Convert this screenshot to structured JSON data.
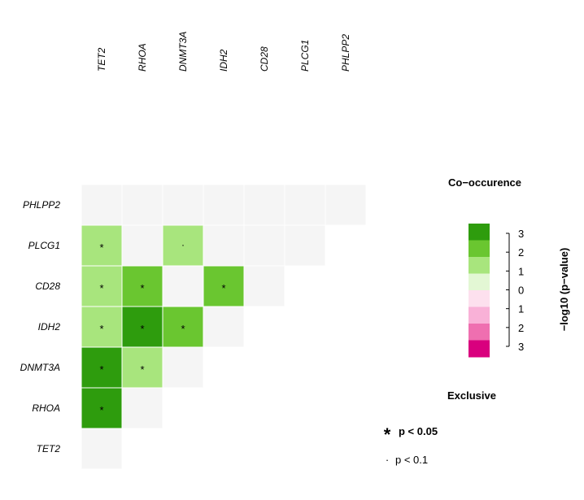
{
  "chart_data": {
    "type": "heatmap",
    "genes": [
      "TET2",
      "RHOA",
      "DNMT3A",
      "IDH2",
      "CD28",
      "PLCG1",
      "PHLPP2"
    ],
    "cells": [
      {
        "row": "RHOA",
        "col": "TET2",
        "value": 3,
        "sig": "*"
      },
      {
        "row": "DNMT3A",
        "col": "TET2",
        "value": 3,
        "sig": "*"
      },
      {
        "row": "DNMT3A",
        "col": "RHOA",
        "value": 1,
        "sig": "*"
      },
      {
        "row": "IDH2",
        "col": "TET2",
        "value": 1,
        "sig": "*"
      },
      {
        "row": "IDH2",
        "col": "RHOA",
        "value": 3,
        "sig": "*"
      },
      {
        "row": "IDH2",
        "col": "DNMT3A",
        "value": 2,
        "sig": "*"
      },
      {
        "row": "CD28",
        "col": "TET2",
        "value": 1,
        "sig": "*"
      },
      {
        "row": "CD28",
        "col": "RHOA",
        "value": 2,
        "sig": "*"
      },
      {
        "row": "CD28",
        "col": "DNMT3A",
        "value": 0,
        "sig": ""
      },
      {
        "row": "CD28",
        "col": "IDH2",
        "value": 2,
        "sig": "*"
      },
      {
        "row": "PLCG1",
        "col": "TET2",
        "value": 1,
        "sig": "*"
      },
      {
        "row": "PLCG1",
        "col": "RHOA",
        "value": 0,
        "sig": ""
      },
      {
        "row": "PLCG1",
        "col": "DNMT3A",
        "value": 1,
        "sig": "·"
      },
      {
        "row": "PLCG1",
        "col": "IDH2",
        "value": 0,
        "sig": ""
      },
      {
        "row": "PLCG1",
        "col": "CD28",
        "value": 0,
        "sig": ""
      },
      {
        "row": "PHLPP2",
        "col": "TET2",
        "value": 0,
        "sig": ""
      },
      {
        "row": "PHLPP2",
        "col": "RHOA",
        "value": 0,
        "sig": ""
      },
      {
        "row": "PHLPP2",
        "col": "DNMT3A",
        "value": 0,
        "sig": ""
      },
      {
        "row": "PHLPP2",
        "col": "IDH2",
        "value": 0,
        "sig": ""
      },
      {
        "row": "PHLPP2",
        "col": "CD28",
        "value": 0,
        "sig": ""
      },
      {
        "row": "PHLPP2",
        "col": "PLCG1",
        "value": 0,
        "sig": ""
      }
    ],
    "legend": {
      "top_title": "Co−occurence",
      "bottom_title": "Exclusive",
      "axis_label": "−log10 (p−value)",
      "tick_labels": [
        "3",
        "2",
        "1",
        "0",
        "1",
        "2",
        "3"
      ],
      "swatches": [
        {
          "side": "co-occurrence",
          "level": 3,
          "color": "#2e9c0d"
        },
        {
          "side": "co-occurrence",
          "level": 2,
          "color": "#6ac630"
        },
        {
          "side": "co-occurrence",
          "level": 1,
          "color": "#a8e57d"
        },
        {
          "side": "neutral",
          "level": 0,
          "color": "#e3f7d4"
        },
        {
          "side": "neutral",
          "level": 0,
          "color": "#fde0ee"
        },
        {
          "side": "exclusive",
          "level": 1,
          "color": "#f9b1d7"
        },
        {
          "side": "exclusive",
          "level": 2,
          "color": "#ef6fb0"
        },
        {
          "side": "exclusive",
          "level": 3,
          "color": "#d9007e"
        }
      ]
    },
    "significance_legend": [
      {
        "symbol": "*",
        "label": "p < 0.05"
      },
      {
        "symbol": "·",
        "label": "p < 0.1"
      }
    ],
    "colors": {
      "none": "#f5f5f5",
      "co1": "#a8e57d",
      "co2": "#6ac630",
      "co3": "#2e9c0d"
    }
  }
}
